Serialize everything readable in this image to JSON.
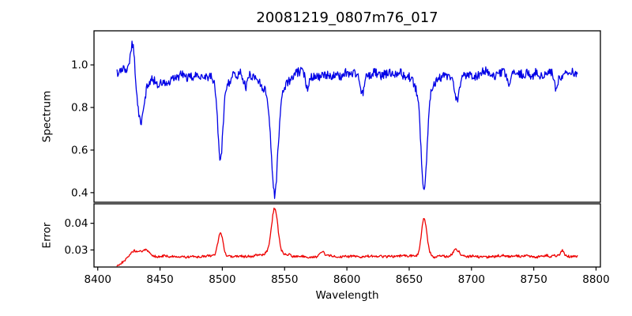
{
  "chart_data": {
    "type": "line",
    "title": "20081219_0807m76_017",
    "xlabel": "Wavelength",
    "xlim": [
      8397,
      8803.5
    ],
    "xticks": [
      8400,
      8450,
      8500,
      8550,
      8600,
      8650,
      8700,
      8750,
      8800
    ],
    "x_start": 8415.5,
    "x_end": 8785,
    "x_step": 0.5,
    "noise_seed": 1337,
    "grid": false,
    "legend": "none",
    "panels": [
      {
        "name": "spectrum",
        "ylabel": "Spectrum",
        "line_color": "#0000e6",
        "ylim": [
          0.355,
          1.16
        ],
        "yticks": [
          0.4,
          0.6,
          0.8,
          1.0
        ],
        "tick_decimals": 1,
        "baseline": 0.958,
        "ramp": null,
        "noise_fine": 0.021,
        "noise_medium": 0.017,
        "medium_scale": 3,
        "seed_offset": 0,
        "features": [
          {
            "center": 8419,
            "amplitude": 0.02,
            "sigma": 4,
            "kind": "continuum-lift"
          },
          {
            "center": 8428,
            "amplitude": 0.16,
            "sigma": 1.8,
            "kind": "emission-spike"
          },
          {
            "center": 8434.5,
            "amplitude": -0.215,
            "sigma": 2.8,
            "kind": "absorption"
          },
          {
            "center": 8452,
            "amplitude": -0.042,
            "sigma": 11,
            "kind": "broad-depression"
          },
          {
            "center": 8498.5,
            "amplitude": -0.335,
            "sigma": 2.0,
            "kind": "absorption-CaII-core"
          },
          {
            "center": 8498.5,
            "amplitude": -0.055,
            "sigma": 6,
            "kind": "absorption-CaII-wings"
          },
          {
            "center": 8519,
            "amplitude": -0.055,
            "sigma": 1.2,
            "kind": "minor-dip"
          },
          {
            "center": 8542,
            "amplitude": -0.465,
            "sigma": 2.6,
            "kind": "absorption-CaII-core"
          },
          {
            "center": 8542,
            "amplitude": -0.095,
            "sigma": 8,
            "kind": "absorption-CaII-wings"
          },
          {
            "center": 8568,
            "amplitude": -0.05,
            "sigma": 1.2,
            "kind": "minor-dip"
          },
          {
            "center": 8612,
            "amplitude": -0.09,
            "sigma": 1.5,
            "kind": "minor-dip"
          },
          {
            "center": 8662,
            "amplitude": -0.46,
            "sigma": 2.4,
            "kind": "absorption-CaII-core"
          },
          {
            "center": 8662,
            "amplitude": -0.085,
            "sigma": 7.5,
            "kind": "absorption-CaII-wings"
          },
          {
            "center": 8688.5,
            "amplitude": -0.13,
            "sigma": 2.2,
            "kind": "absorption"
          },
          {
            "center": 8730,
            "amplitude": -0.055,
            "sigma": 1.2,
            "kind": "minor-dip"
          },
          {
            "center": 8768,
            "amplitude": -0.085,
            "sigma": 1.3,
            "kind": "minor-dip"
          }
        ]
      },
      {
        "name": "error",
        "ylabel": "Error",
        "line_color": "#ee0000",
        "ylim": [
          0.0236,
          0.0473
        ],
        "yticks": [
          0.03,
          0.04
        ],
        "tick_decimals": 2,
        "baseline": 0.0276,
        "ramp": {
          "start_value": 0.0243,
          "tau": 9
        },
        "noise_fine": 0.00045,
        "noise_medium": 0.00035,
        "medium_scale": 3,
        "seed_offset": 7,
        "features": [
          {
            "center": 8429,
            "amplitude": 0.0028,
            "sigma": 3,
            "kind": "error-bump"
          },
          {
            "center": 8438,
            "amplitude": 0.0024,
            "sigma": 4,
            "kind": "error-bump"
          },
          {
            "center": 8498.5,
            "amplitude": 0.0088,
            "sigma": 2.0,
            "kind": "error-peak"
          },
          {
            "center": 8542,
            "amplitude": 0.0165,
            "sigma": 2.4,
            "kind": "error-peak"
          },
          {
            "center": 8542,
            "amplitude": 0.0018,
            "sigma": 7,
            "kind": "error-peak-wings"
          },
          {
            "center": 8580,
            "amplitude": 0.0018,
            "sigma": 1.5,
            "kind": "error-bump"
          },
          {
            "center": 8662,
            "amplitude": 0.0138,
            "sigma": 2.2,
            "kind": "error-peak"
          },
          {
            "center": 8688,
            "amplitude": 0.0028,
            "sigma": 2.2,
            "kind": "error-bump"
          },
          {
            "center": 8773,
            "amplitude": 0.0024,
            "sigma": 1.2,
            "kind": "error-bump"
          }
        ]
      }
    ]
  }
}
